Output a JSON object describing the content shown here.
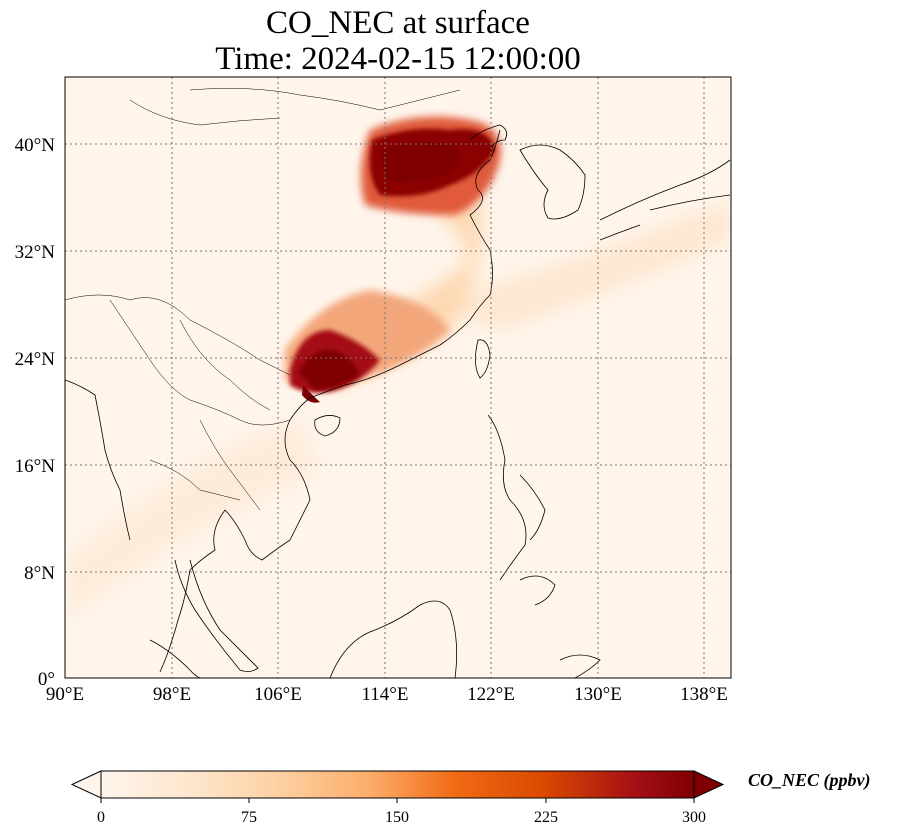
{
  "title": {
    "line1": "CO_NEC at surface",
    "line2": "Time: 2024-02-15 12:00:00"
  },
  "map": {
    "lon_range": [
      90,
      140
    ],
    "lat_range": [
      0,
      44
    ],
    "lon_ticks": [
      "90°E",
      "98°E",
      "106°E",
      "114°E",
      "122°E",
      "130°E",
      "138°E"
    ],
    "lat_ticks": [
      "0°",
      "8°N",
      "16°N",
      "24°N",
      "32°N",
      "40°N"
    ],
    "gridlines": "dotted"
  },
  "colorbar": {
    "label": "CO_NEC (ppbv)",
    "ticks": [
      "0",
      "75",
      "150",
      "225",
      "300"
    ],
    "range": [
      0,
      300
    ],
    "extend": "both",
    "colormap": [
      "#fff5eb",
      "#fee6ce",
      "#fdd0a2",
      "#fdae6b",
      "#f16913",
      "#d94801",
      "#a50f15",
      "#7f0000"
    ],
    "orientation": "horizontal"
  }
}
